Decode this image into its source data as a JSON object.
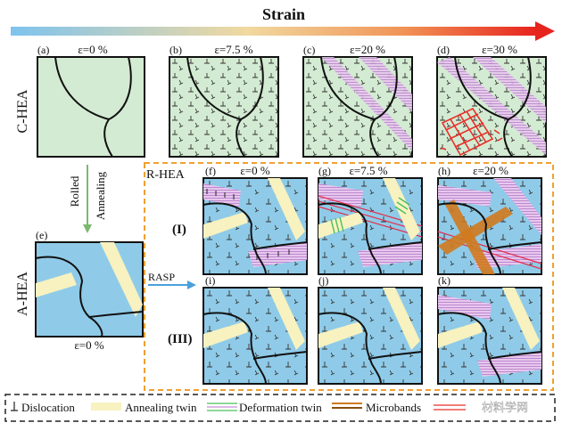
{
  "header": {
    "title": "Strain"
  },
  "rows": {
    "c_hea": "C-HEA",
    "a_hea": "A-HEA",
    "r_hea": "R-HEA",
    "route_i": "(I)",
    "route_iii": "(III)"
  },
  "processing": {
    "rolled": "Rolled",
    "annealing": "Annealing",
    "rasp": "RASP"
  },
  "panels": {
    "a": {
      "label": "(a)",
      "strain": "ε=0 %"
    },
    "b": {
      "label": "(b)",
      "strain": "ε=7.5 %"
    },
    "c": {
      "label": "(c)",
      "strain": "ε=20 %"
    },
    "d": {
      "label": "(d)",
      "strain": "ε=30 %"
    },
    "e": {
      "label": "(e)",
      "strain": "ε=0 %"
    },
    "f": {
      "label": "(f)",
      "strain": "ε=0 %"
    },
    "g": {
      "label": "(g)",
      "strain": "ε=7.5 %"
    },
    "h": {
      "label": "(h)",
      "strain": "ε=20 %"
    },
    "i": {
      "label": "(i)"
    },
    "j": {
      "label": "(j)"
    },
    "k": {
      "label": "(k)"
    }
  },
  "legend": {
    "dislocation": "Dislocation",
    "annealing_twin": "Annealing twin",
    "deformation_twin": "Deformation twin",
    "microbands": "Microbands",
    "watermark": "材料学网"
  },
  "colors": {
    "green_fill": "#d3ebd2",
    "blue_fill": "#8fcbe8",
    "twin": "#f7f2c0",
    "deformation_twin": "#4ac05a",
    "slip_band": "#c98dd6",
    "microband": "#d07a1e",
    "crack": "#e8302a",
    "dashed_box": "#f0a030"
  }
}
